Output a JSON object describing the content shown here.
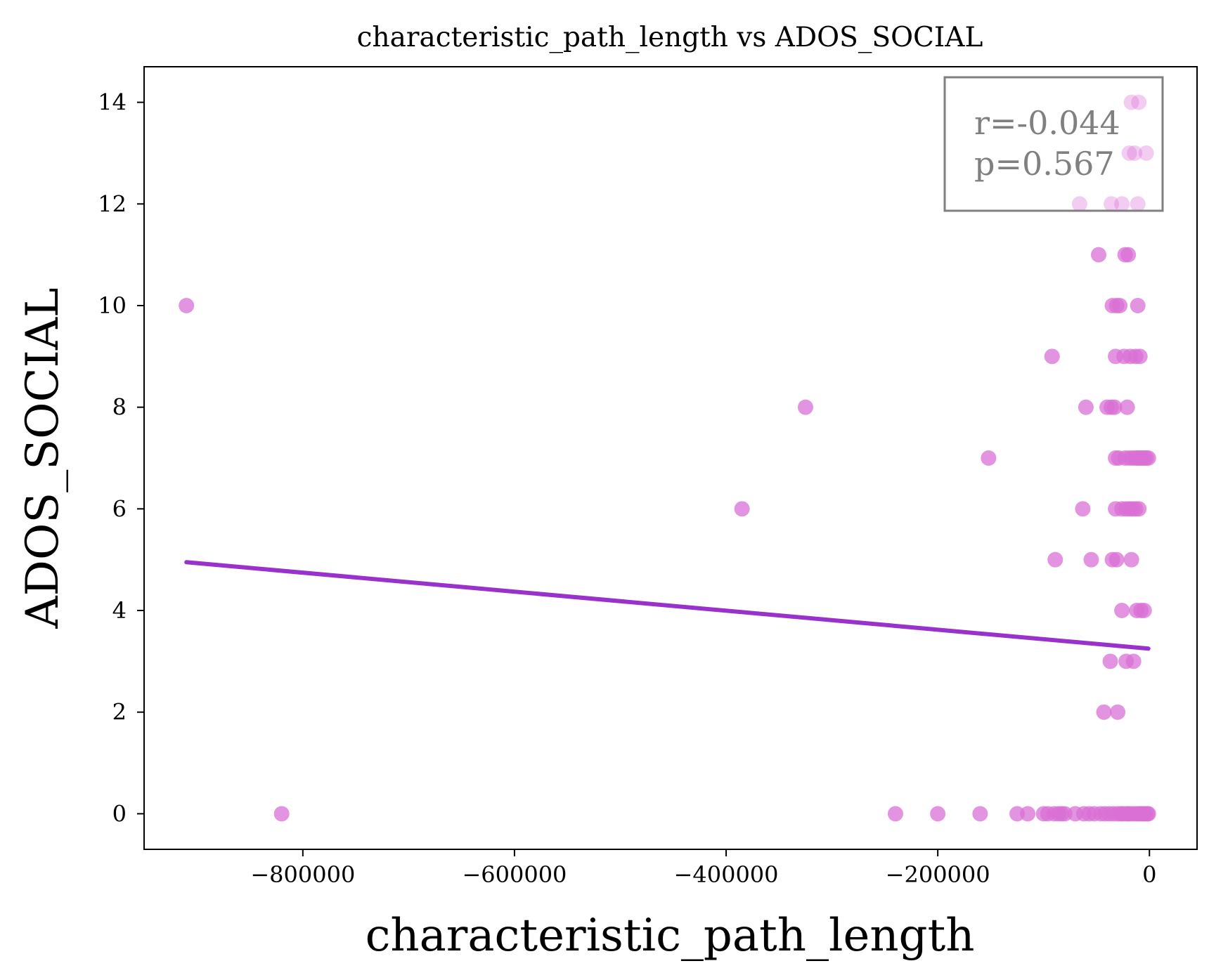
{
  "chart_data": {
    "type": "scatter",
    "title": "characteristic_path_length vs ADOS_SOCIAL",
    "xlabel": "characteristic_path_length",
    "ylabel": "ADOS_SOCIAL",
    "xlim": [
      -950000,
      45000
    ],
    "ylim": [
      -0.7,
      14.7
    ],
    "xticks": [
      -800000,
      -600000,
      -400000,
      -200000,
      0
    ],
    "xtick_labels": [
      "−800000",
      "−600000",
      "−400000",
      "−200000",
      "0"
    ],
    "yticks": [
      0,
      2,
      4,
      6,
      8,
      10,
      12,
      14
    ],
    "ytick_labels": [
      "0",
      "2",
      "4",
      "6",
      "8",
      "10",
      "12",
      "14"
    ],
    "grid": false,
    "annotation": {
      "lines": [
        "r=-0.044",
        "p=0.567"
      ],
      "placement": "top-right"
    },
    "regression_line": {
      "x": [
        -910000,
        -1000
      ],
      "y": [
        4.95,
        3.25
      ],
      "color": "#9932cc"
    },
    "point_color": "#da70d6",
    "points": [
      {
        "x": -910000,
        "y": 10
      },
      {
        "x": -820000,
        "y": 0
      },
      {
        "x": -385000,
        "y": 6
      },
      {
        "x": -325000,
        "y": 8
      },
      {
        "x": -240000,
        "y": 0
      },
      {
        "x": -200000,
        "y": 0
      },
      {
        "x": -160000,
        "y": 0
      },
      {
        "x": -152000,
        "y": 7
      },
      {
        "x": -125000,
        "y": 0
      },
      {
        "x": -115000,
        "y": 0
      },
      {
        "x": -100000,
        "y": 0
      },
      {
        "x": -96000,
        "y": 0
      },
      {
        "x": -92000,
        "y": 9
      },
      {
        "x": -90000,
        "y": 0
      },
      {
        "x": -89000,
        "y": 5
      },
      {
        "x": -86000,
        "y": 0
      },
      {
        "x": -83000,
        "y": 0
      },
      {
        "x": -80000,
        "y": 0
      },
      {
        "x": -70000,
        "y": 0
      },
      {
        "x": -66000,
        "y": 12
      },
      {
        "x": -63000,
        "y": 6
      },
      {
        "x": -62000,
        "y": 0
      },
      {
        "x": -60000,
        "y": 8
      },
      {
        "x": -57000,
        "y": 0
      },
      {
        "x": -55000,
        "y": 5
      },
      {
        "x": -52000,
        "y": 0
      },
      {
        "x": -48000,
        "y": 11
      },
      {
        "x": -46000,
        "y": 0
      },
      {
        "x": -43000,
        "y": 2
      },
      {
        "x": -42000,
        "y": 0
      },
      {
        "x": -40000,
        "y": 8
      },
      {
        "x": -38000,
        "y": 0
      },
      {
        "x": -37000,
        "y": 3
      },
      {
        "x": -36000,
        "y": 8
      },
      {
        "x": -36000,
        "y": 12
      },
      {
        "x": -35000,
        "y": 10
      },
      {
        "x": -35000,
        "y": 5
      },
      {
        "x": -34000,
        "y": 0
      },
      {
        "x": -33000,
        "y": 8
      },
      {
        "x": -32000,
        "y": 7
      },
      {
        "x": -32000,
        "y": 9
      },
      {
        "x": -32000,
        "y": 6
      },
      {
        "x": -31000,
        "y": 10
      },
      {
        "x": -31000,
        "y": 5
      },
      {
        "x": -30000,
        "y": 2
      },
      {
        "x": -30000,
        "y": 0
      },
      {
        "x": -29000,
        "y": 7
      },
      {
        "x": -28000,
        "y": 10
      },
      {
        "x": -27000,
        "y": 0
      },
      {
        "x": -26000,
        "y": 12
      },
      {
        "x": -26000,
        "y": 4
      },
      {
        "x": -26000,
        "y": 6
      },
      {
        "x": -25000,
        "y": 0
      },
      {
        "x": -24000,
        "y": 9
      },
      {
        "x": -23000,
        "y": 11
      },
      {
        "x": -23000,
        "y": 7
      },
      {
        "x": -22000,
        "y": 3
      },
      {
        "x": -22000,
        "y": 6
      },
      {
        "x": -22000,
        "y": 0
      },
      {
        "x": -21000,
        "y": 8
      },
      {
        "x": -20000,
        "y": 11
      },
      {
        "x": -20000,
        "y": 0
      },
      {
        "x": -19000,
        "y": 13
      },
      {
        "x": -19000,
        "y": 6
      },
      {
        "x": -19000,
        "y": 7
      },
      {
        "x": -18000,
        "y": 9
      },
      {
        "x": -18000,
        "y": 0
      },
      {
        "x": -17000,
        "y": 14
      },
      {
        "x": -17000,
        "y": 5
      },
      {
        "x": -16000,
        "y": 7
      },
      {
        "x": -16000,
        "y": 6
      },
      {
        "x": -15000,
        "y": 3
      },
      {
        "x": -15000,
        "y": 0
      },
      {
        "x": -14000,
        "y": 13
      },
      {
        "x": -13000,
        "y": 9
      },
      {
        "x": -13000,
        "y": 6
      },
      {
        "x": -13000,
        "y": 7
      },
      {
        "x": -12000,
        "y": 0
      },
      {
        "x": -12000,
        "y": 4
      },
      {
        "x": -11000,
        "y": 12
      },
      {
        "x": -11000,
        "y": 10
      },
      {
        "x": -11000,
        "y": 7
      },
      {
        "x": -10000,
        "y": 14
      },
      {
        "x": -10000,
        "y": 6
      },
      {
        "x": -10000,
        "y": 0
      },
      {
        "x": -9000,
        "y": 9
      },
      {
        "x": -9000,
        "y": 7
      },
      {
        "x": -8000,
        "y": 4
      },
      {
        "x": -8000,
        "y": 0
      },
      {
        "x": -7000,
        "y": 7
      },
      {
        "x": -6000,
        "y": 0
      },
      {
        "x": -5000,
        "y": 4
      },
      {
        "x": -5000,
        "y": 7
      },
      {
        "x": -4000,
        "y": 0
      },
      {
        "x": -3000,
        "y": 13
      },
      {
        "x": -3000,
        "y": 7
      },
      {
        "x": -2000,
        "y": 0
      },
      {
        "x": -1000,
        "y": 7
      },
      {
        "x": -1000,
        "y": 0
      }
    ]
  }
}
